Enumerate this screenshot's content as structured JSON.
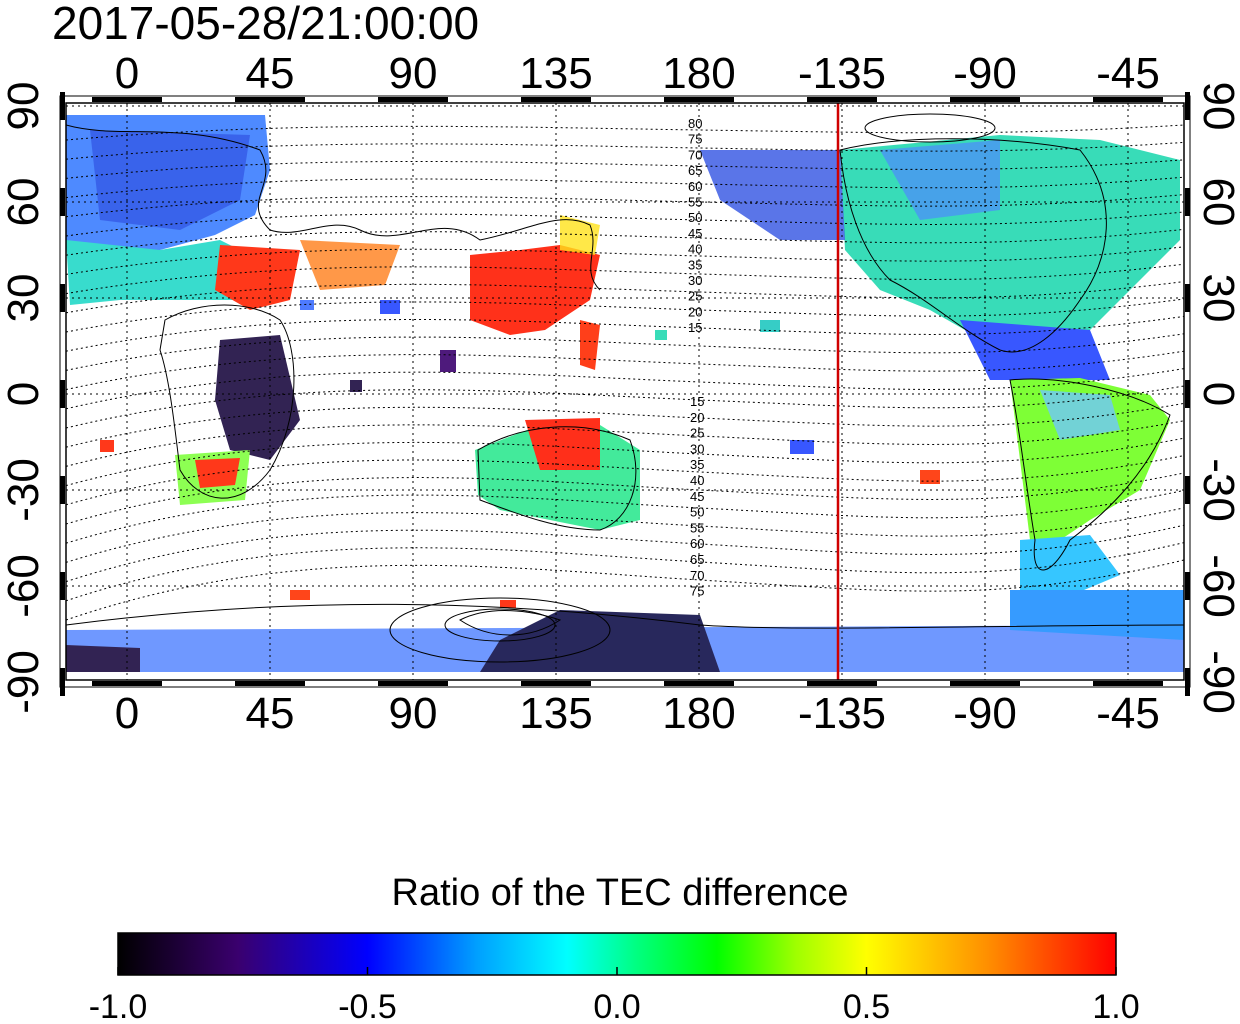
{
  "timestamp": "2017-05-28/21:00:00",
  "map": {
    "lon_ticks": [
      "0",
      "45",
      "90",
      "135",
      "180",
      "-135",
      "-90",
      "-45"
    ],
    "lat_ticks": [
      "90",
      "60",
      "30",
      "0",
      "-30",
      "-60",
      "-90"
    ],
    "meridian_marker": {
      "lon": -135,
      "color": "#d00000"
    },
    "contour_labels_north": [
      "80",
      "75",
      "70",
      "65",
      "60",
      "55",
      "50",
      "45",
      "40",
      "35",
      "30",
      "25",
      "20",
      "15"
    ],
    "contour_labels_south": [
      "15",
      "20",
      "25",
      "30",
      "35",
      "40",
      "45",
      "50",
      "55",
      "60",
      "65",
      "70",
      "75"
    ]
  },
  "colorbar": {
    "title": "Ratio of the TEC difference",
    "tick_labels": [
      "-1.0",
      "-0.5",
      "0.0",
      "0.5",
      "1.0"
    ],
    "range": [
      -1.0,
      1.0
    ],
    "colors": [
      "#000000",
      "#3a006e",
      "#0000ff",
      "#00a0ff",
      "#00ffff",
      "#00ff80",
      "#00ff00",
      "#a0ff00",
      "#ffff00",
      "#ff9000",
      "#ff0000"
    ]
  }
}
